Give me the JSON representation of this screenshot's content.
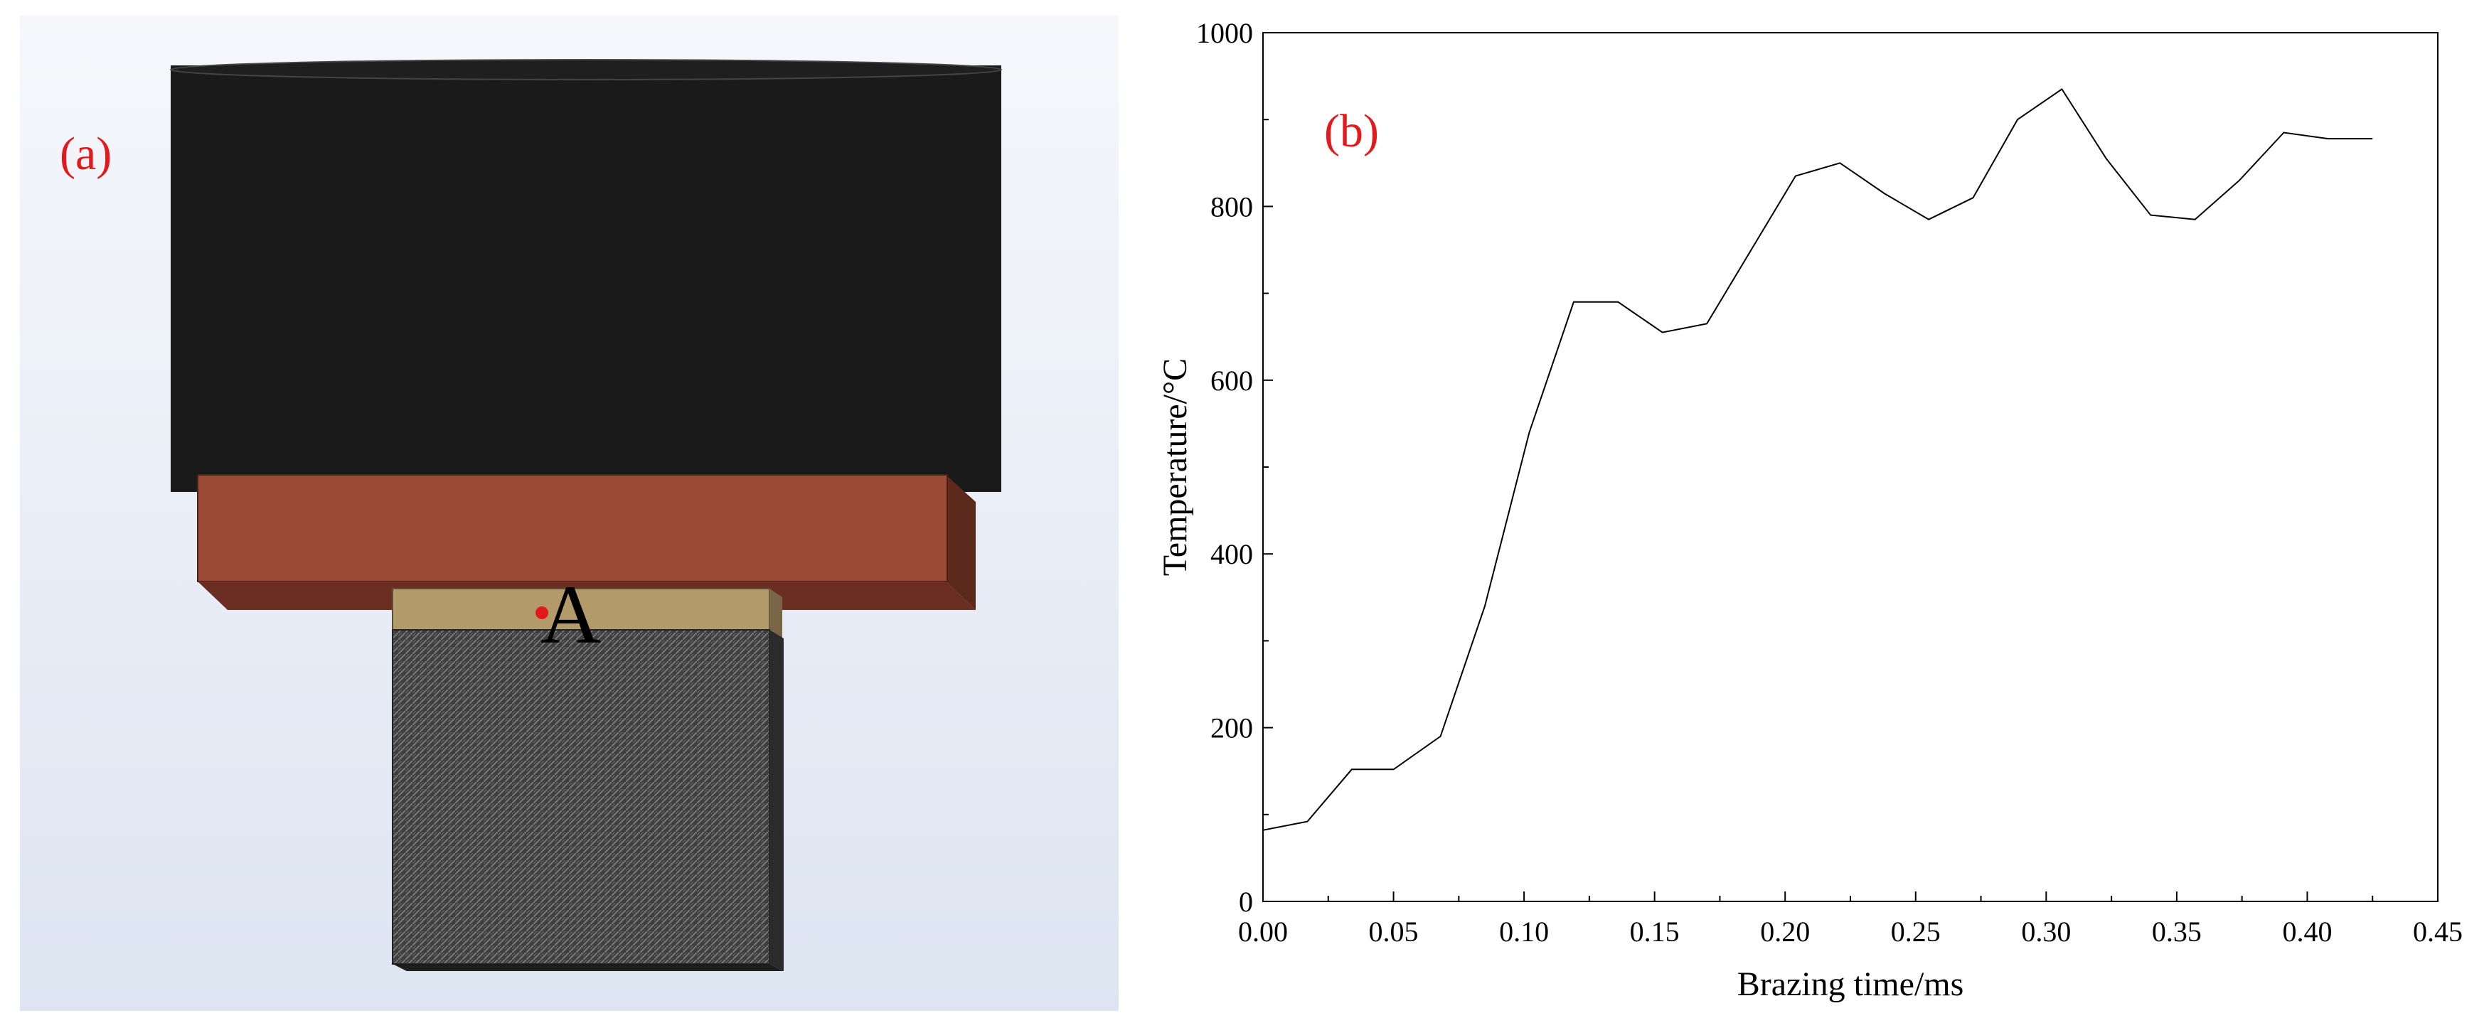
{
  "panel_a": {
    "label": "(a)",
    "point_label": "A",
    "label_color": "#e31a1c",
    "point_color": "#e31a1c",
    "colors": {
      "background_top": "#f5f7fb",
      "background_bottom": "#dde5f2",
      "cylinder": "#1a1a1a",
      "electrode": "#9b4a35",
      "electrode_side": "#5b2a1d",
      "filler": "#b39a6a",
      "base": "#3f3f3f"
    }
  },
  "panel_b": {
    "label": "(b)",
    "label_color": "#e31a1c"
  },
  "chart_data": {
    "type": "line",
    "xlabel": "Brazing time/ms",
    "ylabel": "Temperature/°C",
    "xlim": [
      0.0,
      0.45
    ],
    "ylim": [
      0,
      1000
    ],
    "xticks": [
      "0.00",
      "0.05",
      "0.10",
      "0.15",
      "0.20",
      "0.25",
      "0.30",
      "0.35",
      "0.40",
      "0.45"
    ],
    "yticks": [
      "0",
      "200",
      "400",
      "600",
      "800",
      "1000"
    ],
    "grid": false,
    "series": [
      {
        "x": [
          0.0,
          0.017,
          0.034,
          0.05,
          0.068,
          0.085,
          0.102,
          0.119,
          0.136,
          0.153,
          0.17,
          0.187,
          0.204,
          0.221,
          0.238,
          0.255,
          0.272,
          0.289,
          0.306,
          0.323,
          0.34,
          0.357,
          0.374,
          0.391,
          0.408,
          0.425
        ],
        "y": [
          82,
          92,
          152,
          152,
          190,
          340,
          540,
          690,
          690,
          655,
          665,
          750,
          835,
          850,
          815,
          785,
          810,
          900,
          935,
          855,
          790,
          785,
          830,
          885,
          878,
          878
        ]
      }
    ]
  }
}
